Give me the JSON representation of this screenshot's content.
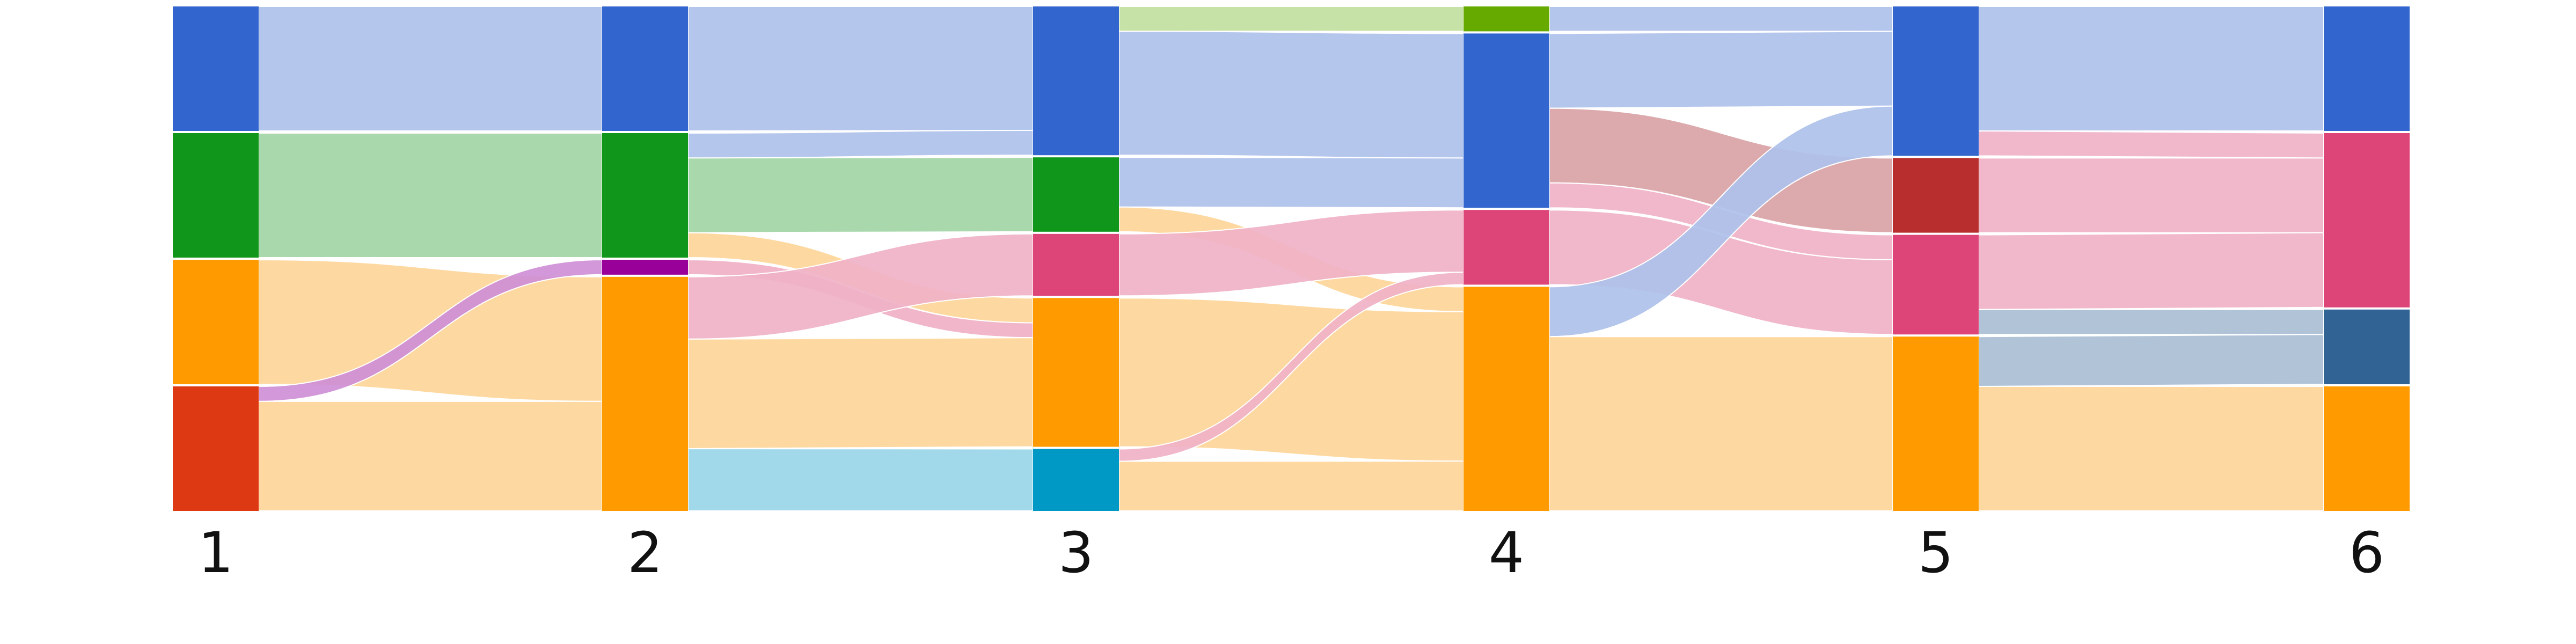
{
  "chart_data": {
    "type": "sankey",
    "stages": [
      "1",
      "2",
      "3",
      "4",
      "5",
      "6"
    ],
    "nodes": [
      {
        "id": "s1-blue",
        "stage": 0,
        "value": 25,
        "color": "#3266ce"
      },
      {
        "id": "s1-green",
        "stage": 0,
        "value": 25,
        "color": "#10961a"
      },
      {
        "id": "s1-orange",
        "stage": 0,
        "value": 25,
        "color": "#ff9a00"
      },
      {
        "id": "s1-red",
        "stage": 0,
        "value": 25,
        "color": "#dd3912"
      },
      {
        "id": "s2-blue",
        "stage": 1,
        "value": 25,
        "color": "#3266ce"
      },
      {
        "id": "s2-green",
        "stage": 1,
        "value": 25,
        "color": "#10961a"
      },
      {
        "id": "s2-purple",
        "stage": 1,
        "value": 3,
        "color": "#990099"
      },
      {
        "id": "s2-orange",
        "stage": 1,
        "value": 47,
        "color": "#ff9a00"
      },
      {
        "id": "s3-blue",
        "stage": 2,
        "value": 30,
        "color": "#3266ce"
      },
      {
        "id": "s3-green",
        "stage": 2,
        "value": 15,
        "color": "#10961a"
      },
      {
        "id": "s3-pink",
        "stage": 2,
        "value": 12.5,
        "color": "#dd4477"
      },
      {
        "id": "s3-orange",
        "stage": 2,
        "value": 30,
        "color": "#ff9a00"
      },
      {
        "id": "s3-teal",
        "stage": 2,
        "value": 12.5,
        "color": "#0099c6"
      },
      {
        "id": "s4-lime",
        "stage": 3,
        "value": 5,
        "color": "#66aa00"
      },
      {
        "id": "s4-blue",
        "stage": 3,
        "value": 35,
        "color": "#3266ce"
      },
      {
        "id": "s4-pink",
        "stage": 3,
        "value": 15,
        "color": "#dd4477"
      },
      {
        "id": "s4-orange",
        "stage": 3,
        "value": 45,
        "color": "#ff9a00"
      },
      {
        "id": "s5-blue",
        "stage": 4,
        "value": 30,
        "color": "#3266ce"
      },
      {
        "id": "s5-crimson",
        "stage": 4,
        "value": 15,
        "color": "#b82e2e"
      },
      {
        "id": "s5-pink",
        "stage": 4,
        "value": 20,
        "color": "#dd4477"
      },
      {
        "id": "s5-orange",
        "stage": 4,
        "value": 35,
        "color": "#ff9a00"
      },
      {
        "id": "s6-blue",
        "stage": 5,
        "value": 25,
        "color": "#3266ce"
      },
      {
        "id": "s6-pink",
        "stage": 5,
        "value": 35,
        "color": "#dd4477"
      },
      {
        "id": "s6-navy",
        "stage": 5,
        "value": 15,
        "color": "#316395"
      },
      {
        "id": "s6-orange",
        "stage": 5,
        "value": 25,
        "color": "#ff9a00"
      }
    ],
    "links": [
      {
        "source": "s1-blue",
        "target": "s2-blue",
        "value": 25,
        "color": "#aec1ea"
      },
      {
        "source": "s1-green",
        "target": "s2-green",
        "value": 25,
        "color": "#a1d5a4"
      },
      {
        "source": "s1-orange",
        "target": "s2-orange",
        "value": 25,
        "color": "#fdd699"
      },
      {
        "source": "s1-red",
        "target": "s2-purple",
        "value": 3,
        "color": "#cf8fd6"
      },
      {
        "source": "s1-red",
        "target": "s2-orange",
        "value": 22,
        "color": "#fdd699"
      },
      {
        "source": "s2-blue",
        "target": "s3-blue",
        "value": 25,
        "color": "#aec1ea"
      },
      {
        "source": "s2-green",
        "target": "s3-blue",
        "value": 5,
        "color": "#aec1ea"
      },
      {
        "source": "s2-green",
        "target": "s3-green",
        "value": 15,
        "color": "#a1d5a4"
      },
      {
        "source": "s2-green",
        "target": "s3-orange",
        "value": 5,
        "color": "#fdd699"
      },
      {
        "source": "s2-purple",
        "target": "s3-orange",
        "value": 3,
        "color": "#f0b0c6"
      },
      {
        "source": "s2-orange",
        "target": "s3-pink",
        "value": 12.5,
        "color": "#f0b2c7"
      },
      {
        "source": "s2-orange",
        "target": "s3-orange",
        "value": 22,
        "color": "#fdd699"
      },
      {
        "source": "s2-orange",
        "target": "s3-teal",
        "value": 12.5,
        "color": "#9ad6e8"
      },
      {
        "source": "s3-blue",
        "target": "s4-lime",
        "value": 5,
        "color": "#c2e09e"
      },
      {
        "source": "s3-blue",
        "target": "s4-blue",
        "value": 25,
        "color": "#aec1ea"
      },
      {
        "source": "s3-green",
        "target": "s4-blue",
        "value": 10,
        "color": "#aec1ea"
      },
      {
        "source": "s3-green",
        "target": "s4-orange",
        "value": 5,
        "color": "#fdd699"
      },
      {
        "source": "s3-pink",
        "target": "s4-pink",
        "value": 12.5,
        "color": "#f0b2c7"
      },
      {
        "source": "s3-orange",
        "target": "s4-orange",
        "value": 30,
        "color": "#fdd699"
      },
      {
        "source": "s3-teal",
        "target": "s4-pink",
        "value": 2.5,
        "color": "#f0b2c7"
      },
      {
        "source": "s3-teal",
        "target": "s4-orange",
        "value": 10,
        "color": "#fdd699"
      },
      {
        "source": "s4-lime",
        "target": "s5-blue",
        "value": 5,
        "color": "#aec1ea"
      },
      {
        "source": "s4-blue",
        "target": "s5-blue",
        "value": 15,
        "color": "#aec1ea"
      },
      {
        "source": "s4-blue",
        "target": "s5-crimson",
        "value": 15,
        "color": "#d9a3a6"
      },
      {
        "source": "s4-blue",
        "target": "s5-pink",
        "value": 5,
        "color": "#f0b2c7"
      },
      {
        "source": "s4-pink",
        "target": "s5-pink",
        "value": 15,
        "color": "#f0b2c7"
      },
      {
        "source": "s4-orange",
        "target": "s5-blue",
        "value": 10,
        "color": "#aec1ea"
      },
      {
        "source": "s4-orange",
        "target": "s5-orange",
        "value": 35,
        "color": "#fdd699"
      },
      {
        "source": "s5-blue",
        "target": "s6-blue",
        "value": 25,
        "color": "#aec1ea"
      },
      {
        "source": "s5-blue",
        "target": "s6-pink",
        "value": 5,
        "color": "#f0b2c7"
      },
      {
        "source": "s5-crimson",
        "target": "s6-pink",
        "value": 15,
        "color": "#f0b2c7"
      },
      {
        "source": "s5-pink",
        "target": "s6-pink",
        "value": 15,
        "color": "#f0b2c7"
      },
      {
        "source": "s5-pink",
        "target": "s6-navy",
        "value": 5,
        "color": "#a9bed4"
      },
      {
        "source": "s5-orange",
        "target": "s6-navy",
        "value": 10,
        "color": "#a9bed4"
      },
      {
        "source": "s5-orange",
        "target": "s6-orange",
        "value": 25,
        "color": "#fdd699"
      }
    ]
  }
}
